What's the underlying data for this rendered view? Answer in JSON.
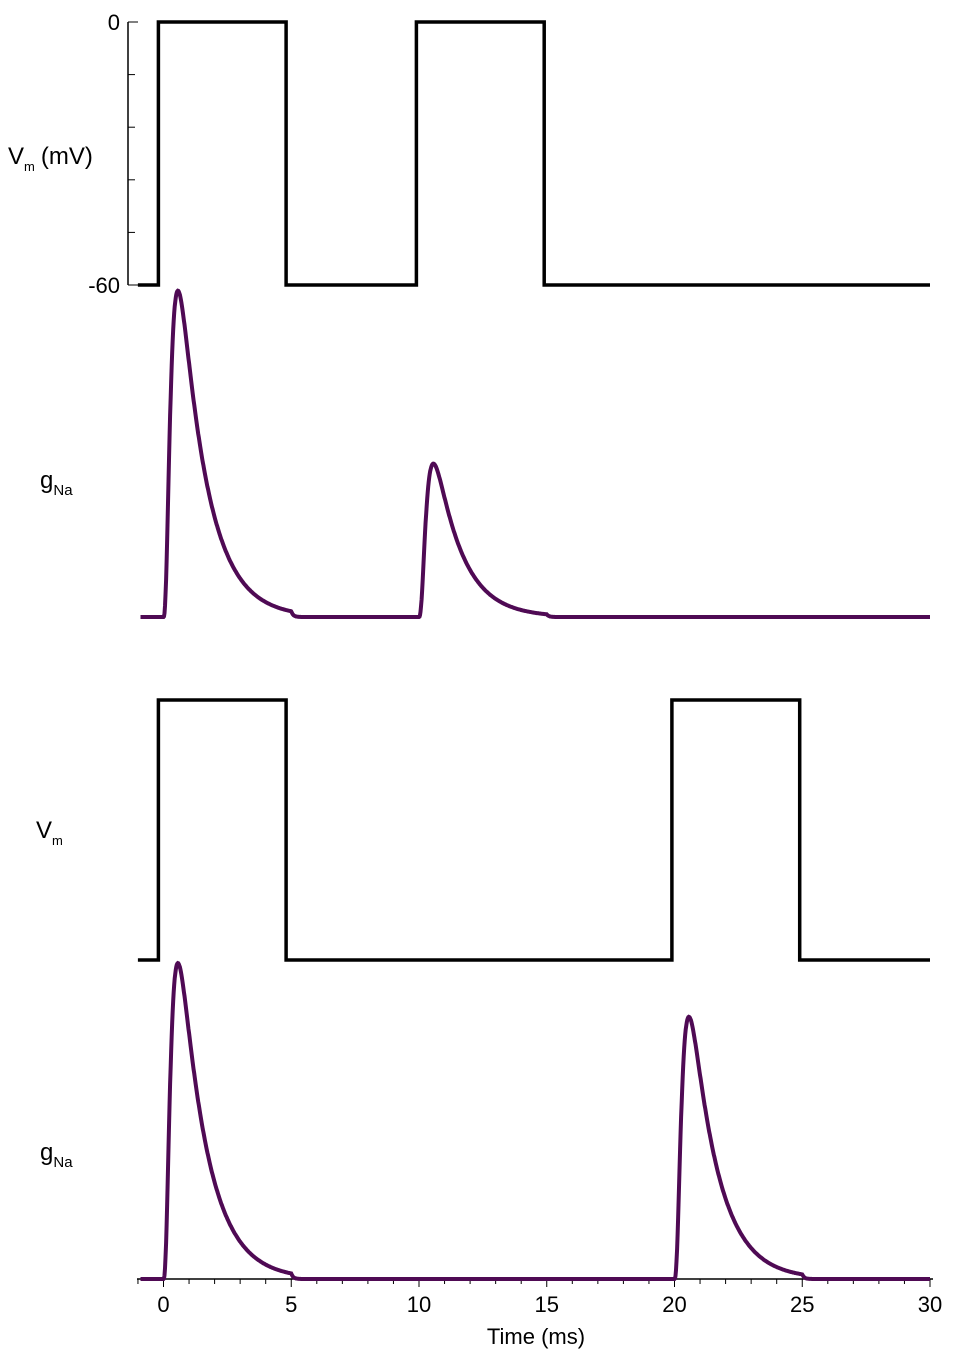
{
  "chart_data": [
    {
      "type": "line",
      "panel": "A-voltage",
      "ylabel_main": "V",
      "ylabel_sub": "m",
      "ylabel_unit": "(mV)",
      "yticks": [
        "0",
        "-60"
      ],
      "ylim": [
        -60,
        0
      ],
      "xlim": [
        -1,
        30
      ],
      "series": [
        {
          "color": "#000000",
          "x": [
            -1,
            -0.2,
            -0.2,
            4.8,
            4.8,
            9.9,
            9.9,
            14.9,
            14.9,
            30
          ],
          "y": [
            -60,
            -60,
            0,
            0,
            -60,
            -60,
            0,
            0,
            -60,
            -60
          ]
        }
      ]
    },
    {
      "type": "line",
      "panel": "A-gNa",
      "ylabel_main": "g",
      "ylabel_sub": "Na",
      "ylim": [
        0,
        1
      ],
      "xlim": [
        -1,
        30
      ],
      "pulses": [
        {
          "onset": 0,
          "offset": 5,
          "peak": 1.0
        },
        {
          "onset": 10,
          "offset": 15,
          "peak": 0.47
        }
      ],
      "color": "#4f0a54"
    },
    {
      "type": "line",
      "panel": "B-voltage",
      "ylabel_main": "V",
      "ylabel_sub": "m",
      "ylim": [
        -60,
        0
      ],
      "xlim": [
        -1,
        30
      ],
      "series": [
        {
          "color": "#000000",
          "x": [
            -1,
            -0.2,
            -0.2,
            4.8,
            4.8,
            19.9,
            19.9,
            24.9,
            24.9,
            30
          ],
          "y": [
            -60,
            -60,
            0,
            0,
            -60,
            -60,
            0,
            0,
            -60,
            -60
          ]
        }
      ]
    },
    {
      "type": "line",
      "panel": "B-gNa",
      "ylabel_main": "g",
      "ylabel_sub": "Na",
      "ylim": [
        0,
        1
      ],
      "xlim": [
        -1,
        30
      ],
      "xlabel": "Time (ms)",
      "xticks": [
        "0",
        "5",
        "10",
        "15",
        "20",
        "25",
        "30"
      ],
      "pulses": [
        {
          "onset": 0,
          "offset": 5,
          "peak": 1.0
        },
        {
          "onset": 20,
          "offset": 25,
          "peak": 0.83
        }
      ],
      "color": "#4f0a54"
    }
  ]
}
